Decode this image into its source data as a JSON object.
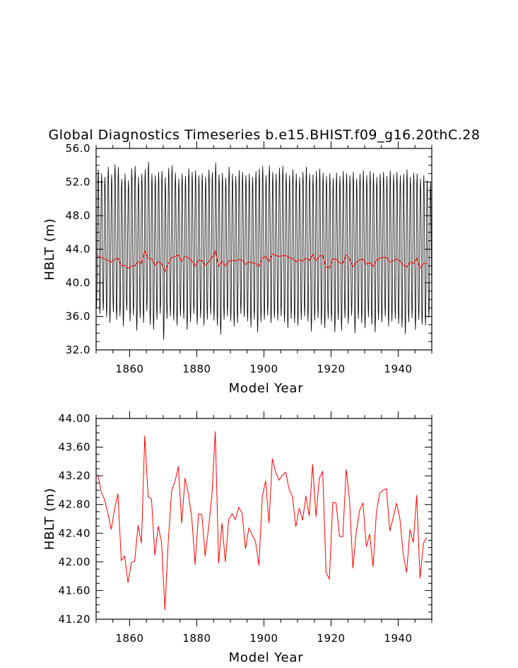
{
  "chart_data": [
    {
      "type": "line",
      "title": "Global Diagnostics Timeseries b.e15.BHIST.f09_g16.20thC.28",
      "xlabel": "Model Year",
      "ylabel": "HBLT (m)",
      "xlim": [
        1850,
        1950
      ],
      "ylim": [
        32.0,
        56.0
      ],
      "x_ticks": [
        1860,
        1880,
        1900,
        1920,
        1940
      ],
      "x_tick_labels": [
        "1860",
        "1880",
        "1900",
        "1920",
        "1940"
      ],
      "y_ticks": [
        32.0,
        36.0,
        40.0,
        44.0,
        48.0,
        52.0,
        56.0
      ],
      "y_tick_labels": [
        "32.0",
        "36.0",
        "40.0",
        "44.0",
        "48.0",
        "52.0",
        "56.0"
      ],
      "grid": false,
      "series": [
        {
          "color": "#000000",
          "frequency": "monthly",
          "annual_max": [
            53.5,
            53.0,
            52.6,
            53.8,
            52.9,
            54.1,
            53.8,
            52.4,
            53.0,
            52.2,
            53.6,
            53.9,
            52.6,
            53.0,
            53.5,
            54.4,
            53.0,
            52.8,
            53.2,
            53.3,
            52.6,
            53.7,
            54.0,
            53.1,
            52.4,
            53.0,
            52.7,
            53.6,
            53.2,
            53.4,
            52.8,
            53.0,
            52.6,
            53.5,
            53.2,
            54.3,
            52.9,
            53.1,
            52.5,
            53.8,
            53.0,
            52.7,
            53.4,
            53.2,
            52.8,
            53.0,
            52.6,
            53.3,
            53.6,
            53.9,
            52.8,
            54.0,
            53.2,
            53.0,
            53.7,
            53.9,
            53.1,
            52.8,
            53.5,
            53.0,
            52.6,
            53.2,
            53.8,
            53.0,
            52.9,
            53.3,
            53.6,
            53.1,
            52.7,
            53.0,
            52.5,
            53.1,
            52.7,
            53.3,
            53.0,
            52.8,
            53.2,
            52.4,
            53.0,
            53.4,
            52.8,
            53.3,
            53.1,
            52.6,
            53.0,
            53.2,
            52.7,
            53.4,
            52.9,
            53.2,
            52.8,
            53.0,
            53.5,
            52.6,
            53.1,
            53.0,
            52.4,
            52.8,
            52.2,
            52.0
          ],
          "annual_min": [
            37.0,
            36.3,
            36.7,
            35.9,
            35.2,
            36.5,
            35.6,
            36.0,
            34.8,
            36.7,
            35.4,
            36.1,
            34.3,
            35.8,
            35.2,
            36.6,
            35.0,
            34.4,
            35.6,
            36.3,
            33.2,
            35.7,
            36.0,
            35.5,
            34.9,
            36.0,
            35.7,
            34.4,
            35.3,
            36.3,
            35.0,
            35.8,
            34.9,
            35.6,
            36.2,
            35.5,
            34.9,
            33.8,
            35.6,
            36.0,
            35.4,
            34.8,
            35.2,
            36.3,
            35.9,
            35.4,
            34.7,
            35.6,
            34.1,
            35.3,
            35.6,
            36.1,
            35.2,
            35.8,
            35.5,
            36.0,
            35.3,
            34.6,
            35.7,
            35.2,
            34.9,
            35.6,
            36.0,
            35.4,
            34.2,
            35.5,
            35.8,
            35.0,
            34.6,
            35.7,
            35.4,
            34.1,
            35.6,
            34.3,
            35.8,
            35.1,
            36.1,
            34.0,
            35.7,
            35.2,
            34.6,
            35.9,
            35.0,
            34.1,
            35.6,
            35.3,
            36.0,
            34.8,
            35.4,
            35.7,
            35.1,
            34.7,
            33.9,
            35.3,
            35.8,
            34.4,
            35.6,
            35.0,
            34.9,
            35.8
          ]
        },
        {
          "color": "#ff0000",
          "frequency": "annual",
          "values": [
            43.22,
            42.98,
            42.87,
            42.68,
            42.45,
            42.74,
            42.95,
            42.02,
            42.08,
            41.71,
            41.99,
            42.01,
            42.51,
            42.26,
            43.76,
            42.91,
            42.88,
            42.09,
            42.5,
            42.27,
            41.33,
            42.29,
            42.99,
            43.12,
            43.33,
            42.54,
            43.17,
            42.95,
            42.61,
            41.96,
            42.67,
            42.66,
            42.08,
            42.48,
            42.93,
            43.82,
            41.98,
            42.54,
            42.0,
            42.59,
            42.67,
            42.59,
            42.76,
            42.68,
            42.18,
            42.47,
            42.38,
            42.28,
            41.95,
            42.91,
            43.13,
            42.54,
            43.44,
            43.25,
            43.14,
            43.21,
            43.25,
            43.01,
            42.91,
            42.49,
            42.75,
            42.58,
            42.92,
            42.64,
            43.36,
            42.63,
            43.17,
            43.26,
            41.85,
            41.76,
            42.83,
            42.82,
            42.36,
            42.35,
            43.29,
            42.86,
            41.91,
            42.42,
            42.72,
            42.82,
            42.21,
            42.39,
            41.93,
            42.69,
            42.96,
            43.0,
            43.02,
            42.43,
            42.62,
            42.82,
            42.6,
            42.11,
            41.85,
            42.45,
            42.27,
            42.93,
            41.77,
            42.26,
            42.34
          ]
        }
      ]
    },
    {
      "type": "line",
      "title": "",
      "xlabel": "Model Year",
      "ylabel": "HBLT (m)",
      "xlim": [
        1850,
        1950
      ],
      "ylim": [
        41.2,
        44.0
      ],
      "x_ticks": [
        1860,
        1880,
        1900,
        1920,
        1940
      ],
      "x_tick_labels": [
        "1860",
        "1880",
        "1900",
        "1920",
        "1940"
      ],
      "y_ticks": [
        41.2,
        41.6,
        42.0,
        42.4,
        42.8,
        43.2,
        43.6,
        44.0
      ],
      "y_tick_labels": [
        "41.20",
        "41.60",
        "42.00",
        "42.40",
        "42.80",
        "43.20",
        "43.60",
        "44.00"
      ],
      "grid": false,
      "series": [
        {
          "color": "#ff0000",
          "frequency": "annual",
          "values": [
            43.22,
            42.98,
            42.87,
            42.68,
            42.45,
            42.74,
            42.95,
            42.02,
            42.08,
            41.71,
            41.99,
            42.01,
            42.51,
            42.26,
            43.76,
            42.91,
            42.88,
            42.09,
            42.5,
            42.27,
            41.33,
            42.29,
            42.99,
            43.12,
            43.33,
            42.54,
            43.17,
            42.95,
            42.61,
            41.96,
            42.67,
            42.66,
            42.08,
            42.48,
            42.93,
            43.82,
            41.98,
            42.54,
            42.0,
            42.59,
            42.67,
            42.59,
            42.76,
            42.68,
            42.18,
            42.47,
            42.38,
            42.28,
            41.95,
            42.91,
            43.13,
            42.54,
            43.44,
            43.25,
            43.14,
            43.21,
            43.25,
            43.01,
            42.91,
            42.49,
            42.75,
            42.58,
            42.92,
            42.64,
            43.36,
            42.63,
            43.17,
            43.26,
            41.85,
            41.76,
            42.83,
            42.82,
            42.36,
            42.35,
            43.29,
            42.86,
            41.91,
            42.42,
            42.72,
            42.82,
            42.21,
            42.39,
            41.93,
            42.69,
            42.96,
            43.0,
            43.02,
            42.43,
            42.62,
            42.82,
            42.6,
            42.11,
            41.85,
            42.45,
            42.27,
            42.93,
            41.77,
            42.26,
            42.34
          ]
        }
      ]
    }
  ]
}
